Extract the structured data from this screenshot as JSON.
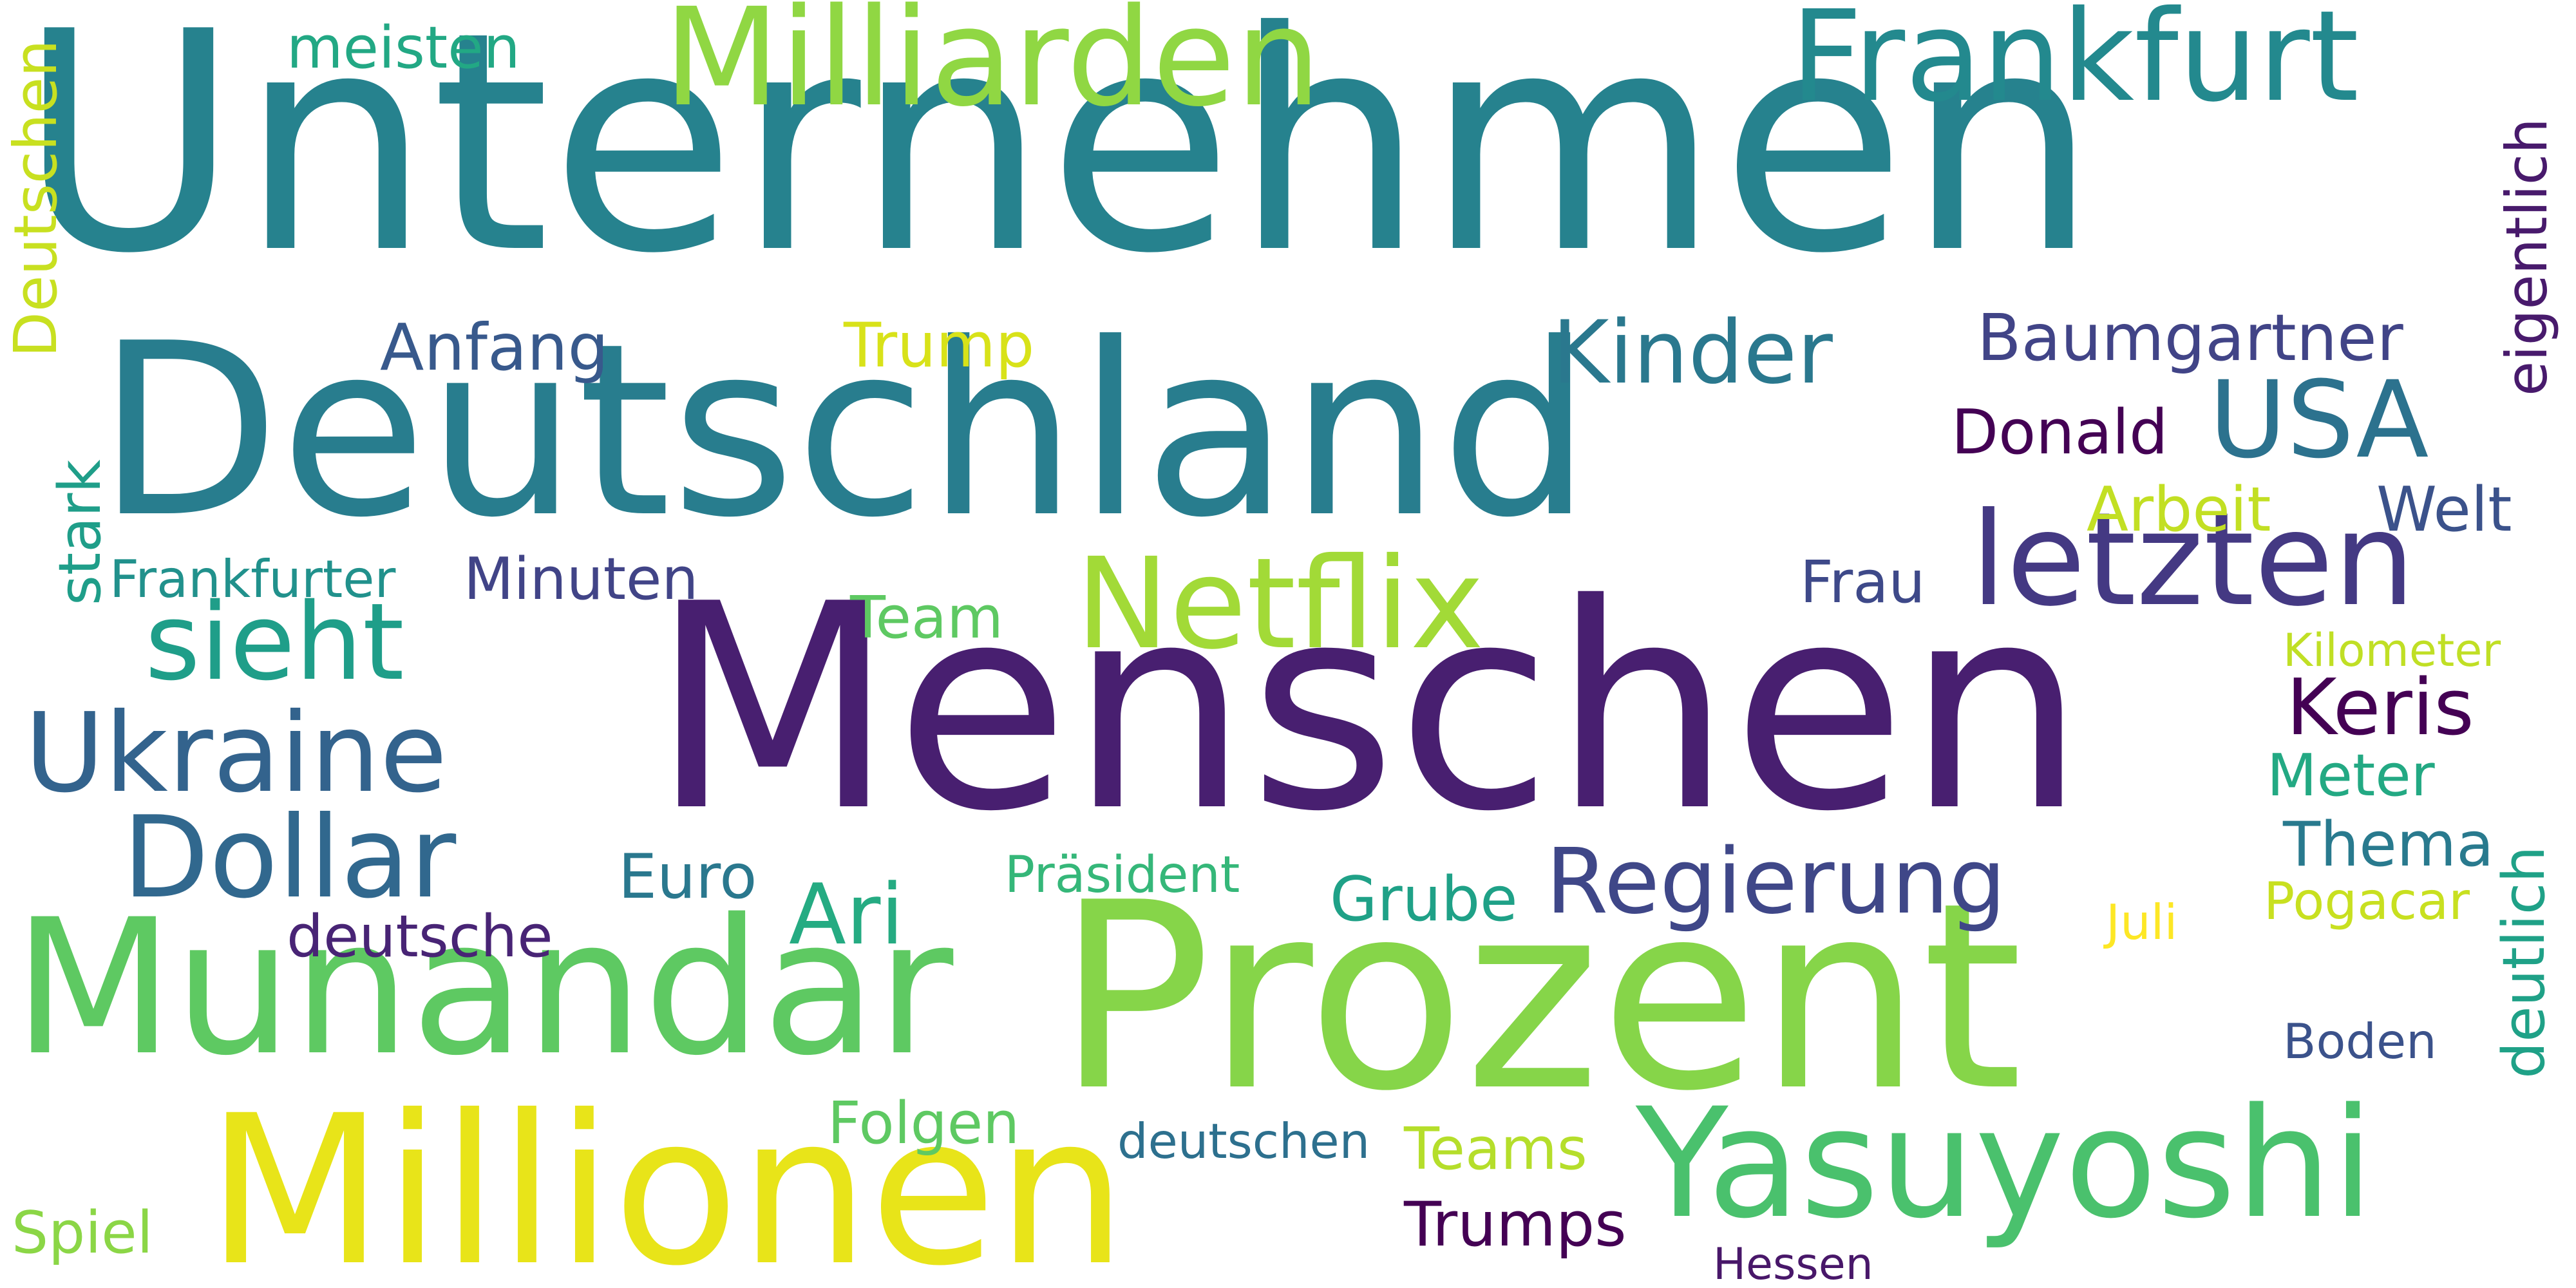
{
  "words": [
    {
      "text": "Unternehmen",
      "color": "#26828e"
    },
    {
      "text": "Deutschland",
      "color": "#287d8e"
    },
    {
      "text": "Menschen",
      "color": "#481f70"
    },
    {
      "text": "Prozent",
      "color": "#86d549"
    },
    {
      "text": "Munandar",
      "color": "#5ec962"
    },
    {
      "text": "Millionen",
      "color": "#e8e419"
    },
    {
      "text": "Yasuyoshi",
      "color": "#4ac16d"
    },
    {
      "text": "Milliarden",
      "color": "#90d743"
    },
    {
      "text": "Frankfurt",
      "color": "#23898e"
    },
    {
      "text": "Netflix",
      "color": "#a2da37"
    },
    {
      "text": "letzten",
      "color": "#443983"
    },
    {
      "text": "sieht",
      "color": "#1f9e89"
    },
    {
      "text": "Ukraine",
      "color": "#33638d"
    },
    {
      "text": "Dollar",
      "color": "#31688e"
    },
    {
      "text": "Regierung",
      "color": "#3f4788"
    },
    {
      "text": "USA",
      "color": "#2c728e"
    },
    {
      "text": "Kinder",
      "color": "#2a788e"
    },
    {
      "text": "Keris",
      "color": "#440154"
    },
    {
      "text": "Baumgartner",
      "color": "#414487"
    },
    {
      "text": "Ari",
      "color": "#25ab82"
    },
    {
      "text": "Anfang",
      "color": "#38598c"
    },
    {
      "text": "Trump",
      "color": "#d8e219"
    },
    {
      "text": "Donald",
      "color": "#440154"
    },
    {
      "text": "Arbeit",
      "color": "#c2df23"
    },
    {
      "text": "Welt",
      "color": "#3b528b"
    },
    {
      "text": "Frau",
      "color": "#3e4989"
    },
    {
      "text": "Team",
      "color": "#5ec962"
    },
    {
      "text": "Meter",
      "color": "#23a983"
    },
    {
      "text": "Thema",
      "color": "#297a8e"
    },
    {
      "text": "Euro",
      "color": "#2a788e"
    },
    {
      "text": "Präsident",
      "color": "#35b779"
    },
    {
      "text": "Grube",
      "color": "#1fa187"
    },
    {
      "text": "deutsche",
      "color": "#482475"
    },
    {
      "text": "Pogacar",
      "color": "#c8e020"
    },
    {
      "text": "Juli",
      "color": "#fde725"
    },
    {
      "text": "Boden",
      "color": "#3b528b"
    },
    {
      "text": "Folgen",
      "color": "#5ec962"
    },
    {
      "text": "deutschen",
      "color": "#2d708e"
    },
    {
      "text": "Teams",
      "color": "#b5de2b"
    },
    {
      "text": "Trumps",
      "color": "#440154"
    },
    {
      "text": "Spiel",
      "color": "#8bd646"
    },
    {
      "text": "Hessen",
      "color": "#481769"
    },
    {
      "text": "meisten",
      "color": "#22a884"
    },
    {
      "text": "Frankfurter",
      "color": "#21918c"
    },
    {
      "text": "Minuten",
      "color": "#414487"
    },
    {
      "text": "Kilometer",
      "color": "#c0df25"
    },
    {
      "text": "Deutschen",
      "color": "#c8e020"
    },
    {
      "text": "stark",
      "color": "#1f9e89"
    },
    {
      "text": "eigentlich",
      "color": "#481a6c"
    },
    {
      "text": "deutlich",
      "color": "#1fa187"
    }
  ]
}
